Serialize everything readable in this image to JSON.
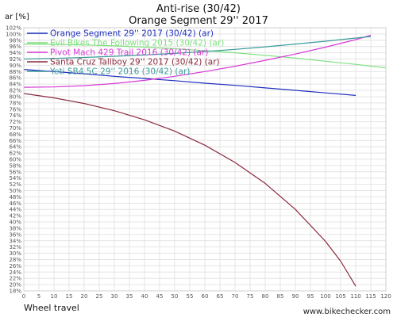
{
  "chart_data": {
    "type": "line",
    "title": "Anti-rise (30/42)",
    "subtitle": "Orange Segment 29'' 2017",
    "ylabel": "ar [%]",
    "xlabel": "Wheel travel",
    "credit": "www.bikechecker.com",
    "xlim": [
      0,
      120
    ],
    "ylim": [
      18,
      102
    ],
    "xticks": [
      0,
      5,
      10,
      15,
      20,
      25,
      30,
      35,
      40,
      45,
      50,
      55,
      60,
      65,
      70,
      75,
      80,
      85,
      90,
      95,
      100,
      105,
      110,
      115,
      120
    ],
    "yticks": [
      18,
      20,
      22,
      24,
      26,
      28,
      30,
      32,
      34,
      36,
      38,
      40,
      42,
      44,
      46,
      48,
      50,
      52,
      54,
      56,
      58,
      60,
      62,
      64,
      66,
      68,
      70,
      72,
      74,
      76,
      78,
      80,
      82,
      84,
      86,
      88,
      90,
      92,
      94,
      96,
      98,
      100,
      102
    ],
    "ytick_suffix": "%",
    "grid": true,
    "legend_position": "top-left",
    "series": [
      {
        "name": "Orange Segment 29'' 2017 (30/42) (ar)",
        "color": "#1f2fbf",
        "x": [
          0,
          10,
          20,
          30,
          40,
          50,
          60,
          70,
          80,
          90,
          100,
          110
        ],
        "y": [
          88.7,
          88.0,
          87.3,
          86.5,
          85.8,
          85.1,
          84.3,
          83.6,
          82.8,
          82.0,
          81.2,
          80.4
        ]
      },
      {
        "name": "Evil Bikes The Following 2015 (30/42) (ar)",
        "color": "#7ee07e",
        "x": [
          0,
          10,
          20,
          30,
          40,
          50,
          60,
          70,
          80,
          90,
          100,
          110,
          120
        ],
        "y": [
          96.8,
          96.7,
          96.5,
          96.2,
          95.8,
          95.3,
          94.7,
          94.0,
          93.2,
          92.3,
          91.3,
          90.3,
          89.2
        ]
      },
      {
        "name": "Pivot Mach 429 Trail 2016 (30/42) (ar)",
        "color": "#d63ad6",
        "x": [
          0,
          10,
          20,
          30,
          40,
          50,
          60,
          70,
          80,
          90,
          100,
          110,
          115
        ],
        "y": [
          83.0,
          83.1,
          83.5,
          84.2,
          85.2,
          86.5,
          88.0,
          89.7,
          91.6,
          93.6,
          95.8,
          98.2,
          99.6
        ]
      },
      {
        "name": "Santa Cruz Tallboy 29'' 2017 (30/42) (ar)",
        "color": "#8a2a3c",
        "x": [
          0,
          10,
          20,
          30,
          40,
          50,
          60,
          70,
          80,
          90,
          100,
          105,
          110
        ],
        "y": [
          81.0,
          79.6,
          77.8,
          75.5,
          72.6,
          69.0,
          64.5,
          59.0,
          52.3,
          44.0,
          33.8,
          27.5,
          19.5
        ]
      },
      {
        "name": "Yeti SB4.5C 29'' 2016 (30/42) (ar)",
        "color": "#3a9a9a",
        "x": [
          0,
          10,
          20,
          30,
          40,
          50,
          60,
          70,
          80,
          90,
          100,
          110,
          115
        ],
        "y": [
          92.0,
          92.2,
          92.5,
          92.9,
          93.3,
          93.8,
          94.4,
          95.1,
          95.9,
          96.8,
          97.7,
          98.7,
          99.2
        ]
      }
    ]
  }
}
